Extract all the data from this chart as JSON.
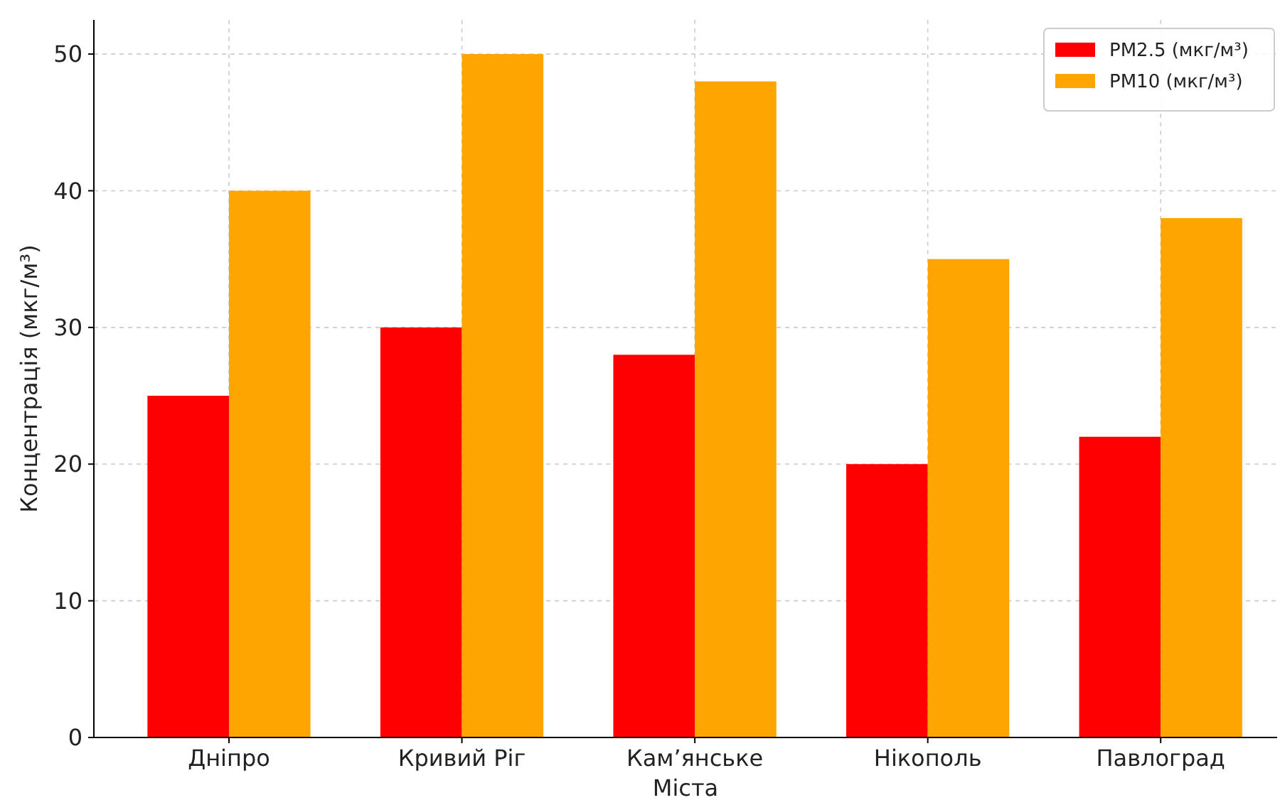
{
  "chart_data": {
    "type": "bar",
    "xlabel": "Міста",
    "ylabel": "Концентрація (мкг/м³)",
    "categories": [
      "Дніпро",
      "Кривий Ріг",
      "Кам’янське",
      "Нікополь",
      "Павлоград"
    ],
    "series": [
      {
        "name": "PM2.5 (мкг/м³)",
        "color": "#ff0000",
        "values": [
          25,
          30,
          28,
          20,
          22
        ]
      },
      {
        "name": "PM10 (мкг/м³)",
        "color": "#ffa500",
        "values": [
          40,
          50,
          48,
          35,
          38
        ]
      }
    ],
    "ylim": [
      0,
      52.5
    ],
    "yticks": [
      0,
      10,
      20,
      30,
      40,
      50
    ],
    "grid": true,
    "legend": "top right"
  }
}
